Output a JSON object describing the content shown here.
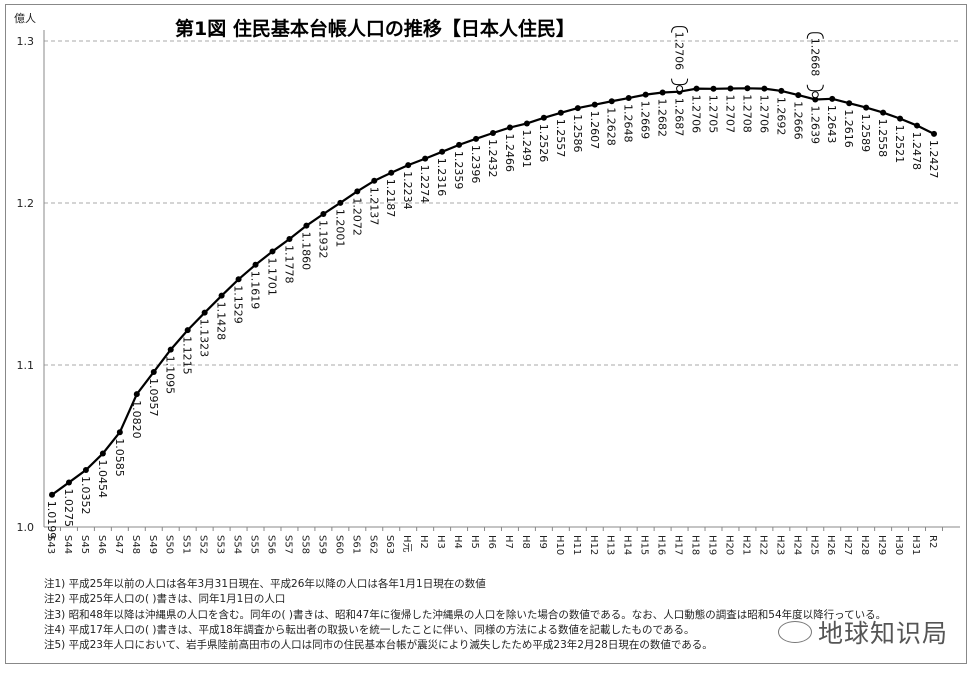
{
  "chart_data": {
    "type": "line",
    "title": "第1図  住民基本台帳人口の推移【日本人住民】",
    "ylabel": "億人",
    "ylim": [
      1.0,
      1.3
    ],
    "yticks": [
      "1.0",
      "1.1",
      "1.2",
      "1.3"
    ],
    "grid": true,
    "categories": [
      "S43",
      "S44",
      "S45",
      "S46",
      "S47",
      "S48",
      "S49",
      "S50",
      "S51",
      "S52",
      "S53",
      "S54",
      "S55",
      "S56",
      "S57",
      "S58",
      "S59",
      "S60",
      "S61",
      "S62",
      "S63",
      "H元",
      "H2",
      "H3",
      "H4",
      "H5",
      "H6",
      "H7",
      "H8",
      "H9",
      "H10",
      "H11",
      "H12",
      "H13",
      "H14",
      "H15",
      "H16",
      "H17",
      "H18",
      "H19",
      "H20",
      "H21",
      "H22",
      "H23",
      "H24",
      "H25",
      "H26",
      "H27",
      "H28",
      "H29",
      "H30",
      "H31",
      "R2"
    ],
    "values": [
      1.0199,
      1.0275,
      1.0352,
      1.0454,
      1.0585,
      1.082,
      1.0957,
      1.1095,
      1.1215,
      1.1323,
      1.1428,
      1.1529,
      1.1619,
      1.1701,
      1.1778,
      1.186,
      1.1932,
      1.2001,
      1.2072,
      1.2137,
      1.2187,
      1.2234,
      1.2274,
      1.2316,
      1.2359,
      1.2396,
      1.2432,
      1.2466,
      1.2491,
      1.2526,
      1.2557,
      1.2586,
      1.2607,
      1.2628,
      1.2648,
      1.2669,
      1.2682,
      1.2687,
      1.2706,
      1.2705,
      1.2707,
      1.2708,
      1.2706,
      1.2692,
      1.2666,
      1.2639,
      1.2643,
      1.2616,
      1.2589,
      1.2558,
      1.2521,
      1.2478,
      1.2427
    ],
    "value_labels": [
      "1.0199",
      "1.0275",
      "1.0352",
      "1.0454",
      "1.0585",
      "1.0820",
      "1.0957",
      "1.1095",
      "1.1215",
      "1.1323",
      "1.1428",
      "1.1529",
      "1.1619",
      "1.1701",
      "1.1778",
      "1.1860",
      "1.1932",
      "1.2001",
      "1.2072",
      "1.2137",
      "1.2187",
      "1.2234",
      "1.2274",
      "1.2316",
      "1.2359",
      "1.2396",
      "1.2432",
      "1.2466",
      "1.2491",
      "1.2526",
      "1.2557",
      "1.2586",
      "1.2607",
      "1.2628",
      "1.2648",
      "1.2669",
      "1.2682",
      "1.2687",
      "1.2706",
      "1.2705",
      "1.2707",
      "1.2708",
      "1.2706",
      "1.2692",
      "1.2666",
      "1.2639",
      "1.2643",
      "1.2616",
      "1.2589",
      "1.2558",
      "1.2521",
      "1.2478",
      "1.2427"
    ],
    "bracket_points": [
      {
        "category": "H17",
        "value": 1.2706,
        "label": "1.2706"
      },
      {
        "category": "H25",
        "value": 1.2668,
        "label": "1.2668"
      }
    ]
  },
  "notes": [
    "注1) 平成25年以前の人口は各年3月31日現在、平成26年以降の人口は各年1月1日現在の数値",
    "注2) 平成25年人口の( )書きは、同年1月1日の人口",
    "注3) 昭和48年以降は沖縄県の人口を含む。同年の( )書きは、昭和47年に復帰した沖縄県の人口を除いた場合の数値である。なお、人口動態の調査は昭和54年度以降行っている。",
    "注4) 平成17年人口の( )書きは、平成18年調査から転出者の取扱いを統一したことに伴い、同様の方法による数値を記載したものである。",
    "注5) 平成23年人口において、岩手県陸前高田市の人口は同市の住民基本台帳が震災により滅失したため平成23年2月28日現在の数値である。"
  ],
  "watermark": "地球知识局"
}
